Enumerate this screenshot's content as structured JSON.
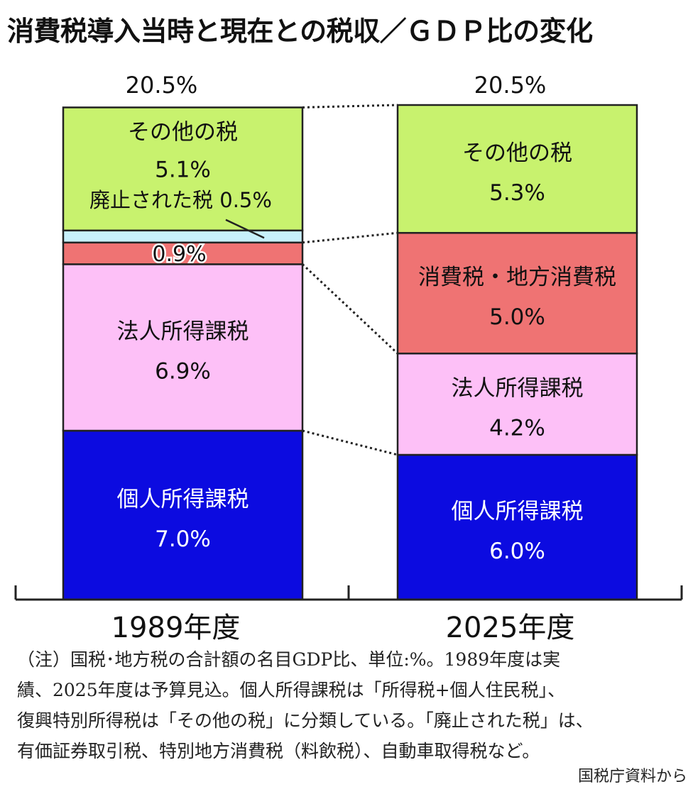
{
  "colors": {
    "other": "#c8f26e",
    "abolished": "#c7f0fb",
    "consumption": "#ef7373",
    "corporate": "#fdc0f7",
    "personal": "#0c0be0"
  },
  "chart_data": {
    "type": "bar",
    "stacked": true,
    "title": "消費税導入当時と現在との税収／ＧＤＰ比の変化",
    "categories": [
      "1989年度",
      "2025年度"
    ],
    "totals": [
      "20.5%",
      "20.5%"
    ],
    "unit": "%",
    "ylim": [
      0,
      20.5
    ],
    "series": [
      {
        "key": "personal",
        "name": "個人所得課税",
        "values": [
          7.0,
          6.0
        ],
        "labels": [
          "7.0%",
          "6.0%"
        ]
      },
      {
        "key": "corporate",
        "name": "法人所得課税",
        "values": [
          6.9,
          4.2
        ],
        "labels": [
          "6.9%",
          "4.2%"
        ]
      },
      {
        "key": "consumption",
        "name": "消費税・地方消費税",
        "values": [
          0.9,
          5.0
        ],
        "labels": [
          "0.9%",
          "5.0%"
        ]
      },
      {
        "key": "abolished",
        "name": "廃止された税",
        "values": [
          0.5,
          0
        ],
        "labels": [
          "0.5%",
          ""
        ]
      },
      {
        "key": "other",
        "name": "その他の税",
        "values": [
          5.1,
          5.3
        ],
        "labels": [
          "5.1%",
          "5.3%"
        ]
      }
    ],
    "callout_abolished": "廃止された税 0.5%"
  },
  "note": [
    "（注）国税･地方税の合計額の名目GDP比、単位:%。1989年度は実",
    "績、2025年度は予算見込。個人所得課税は「所得税+個人住民税」、",
    "復興特別所得税は「その他の税」に分類している。「廃止された税」は、",
    "有価証券取引税、特別地方消費税（料飲税）、自動車取得税など。"
  ],
  "source": "国税庁資料から"
}
